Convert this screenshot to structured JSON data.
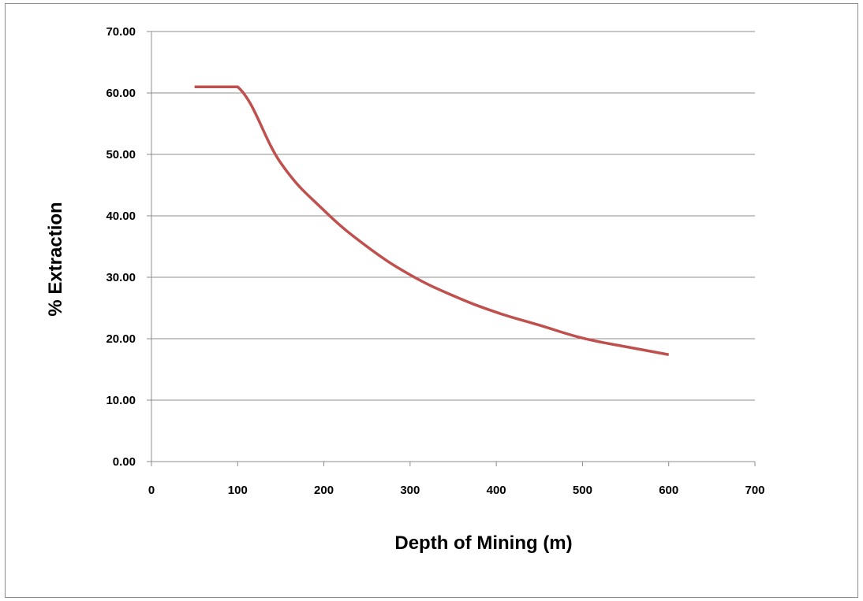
{
  "chart_data": {
    "type": "line",
    "title": "",
    "xlabel": "Depth of Mining (m)",
    "ylabel": "% Extraction",
    "xlim": [
      0,
      700
    ],
    "ylim": [
      0,
      70
    ],
    "x_ticks": [
      "0",
      "100",
      "200",
      "300",
      "400",
      "500",
      "600",
      "700"
    ],
    "y_ticks": [
      "0.00",
      "10.00",
      "20.00",
      "30.00",
      "40.00",
      "50.00",
      "60.00",
      "70.00"
    ],
    "grid": "horizontal",
    "legend": "none",
    "series": [
      {
        "color": "#c0504d",
        "x": [
          50,
          100,
          150,
          200,
          250,
          300,
          350,
          400,
          450,
          500,
          550,
          600
        ],
        "y": [
          61.0,
          61.0,
          48.6,
          40.9,
          35.0,
          30.4,
          27.0,
          24.3,
          22.2,
          20.1,
          18.7,
          17.4
        ]
      }
    ]
  }
}
